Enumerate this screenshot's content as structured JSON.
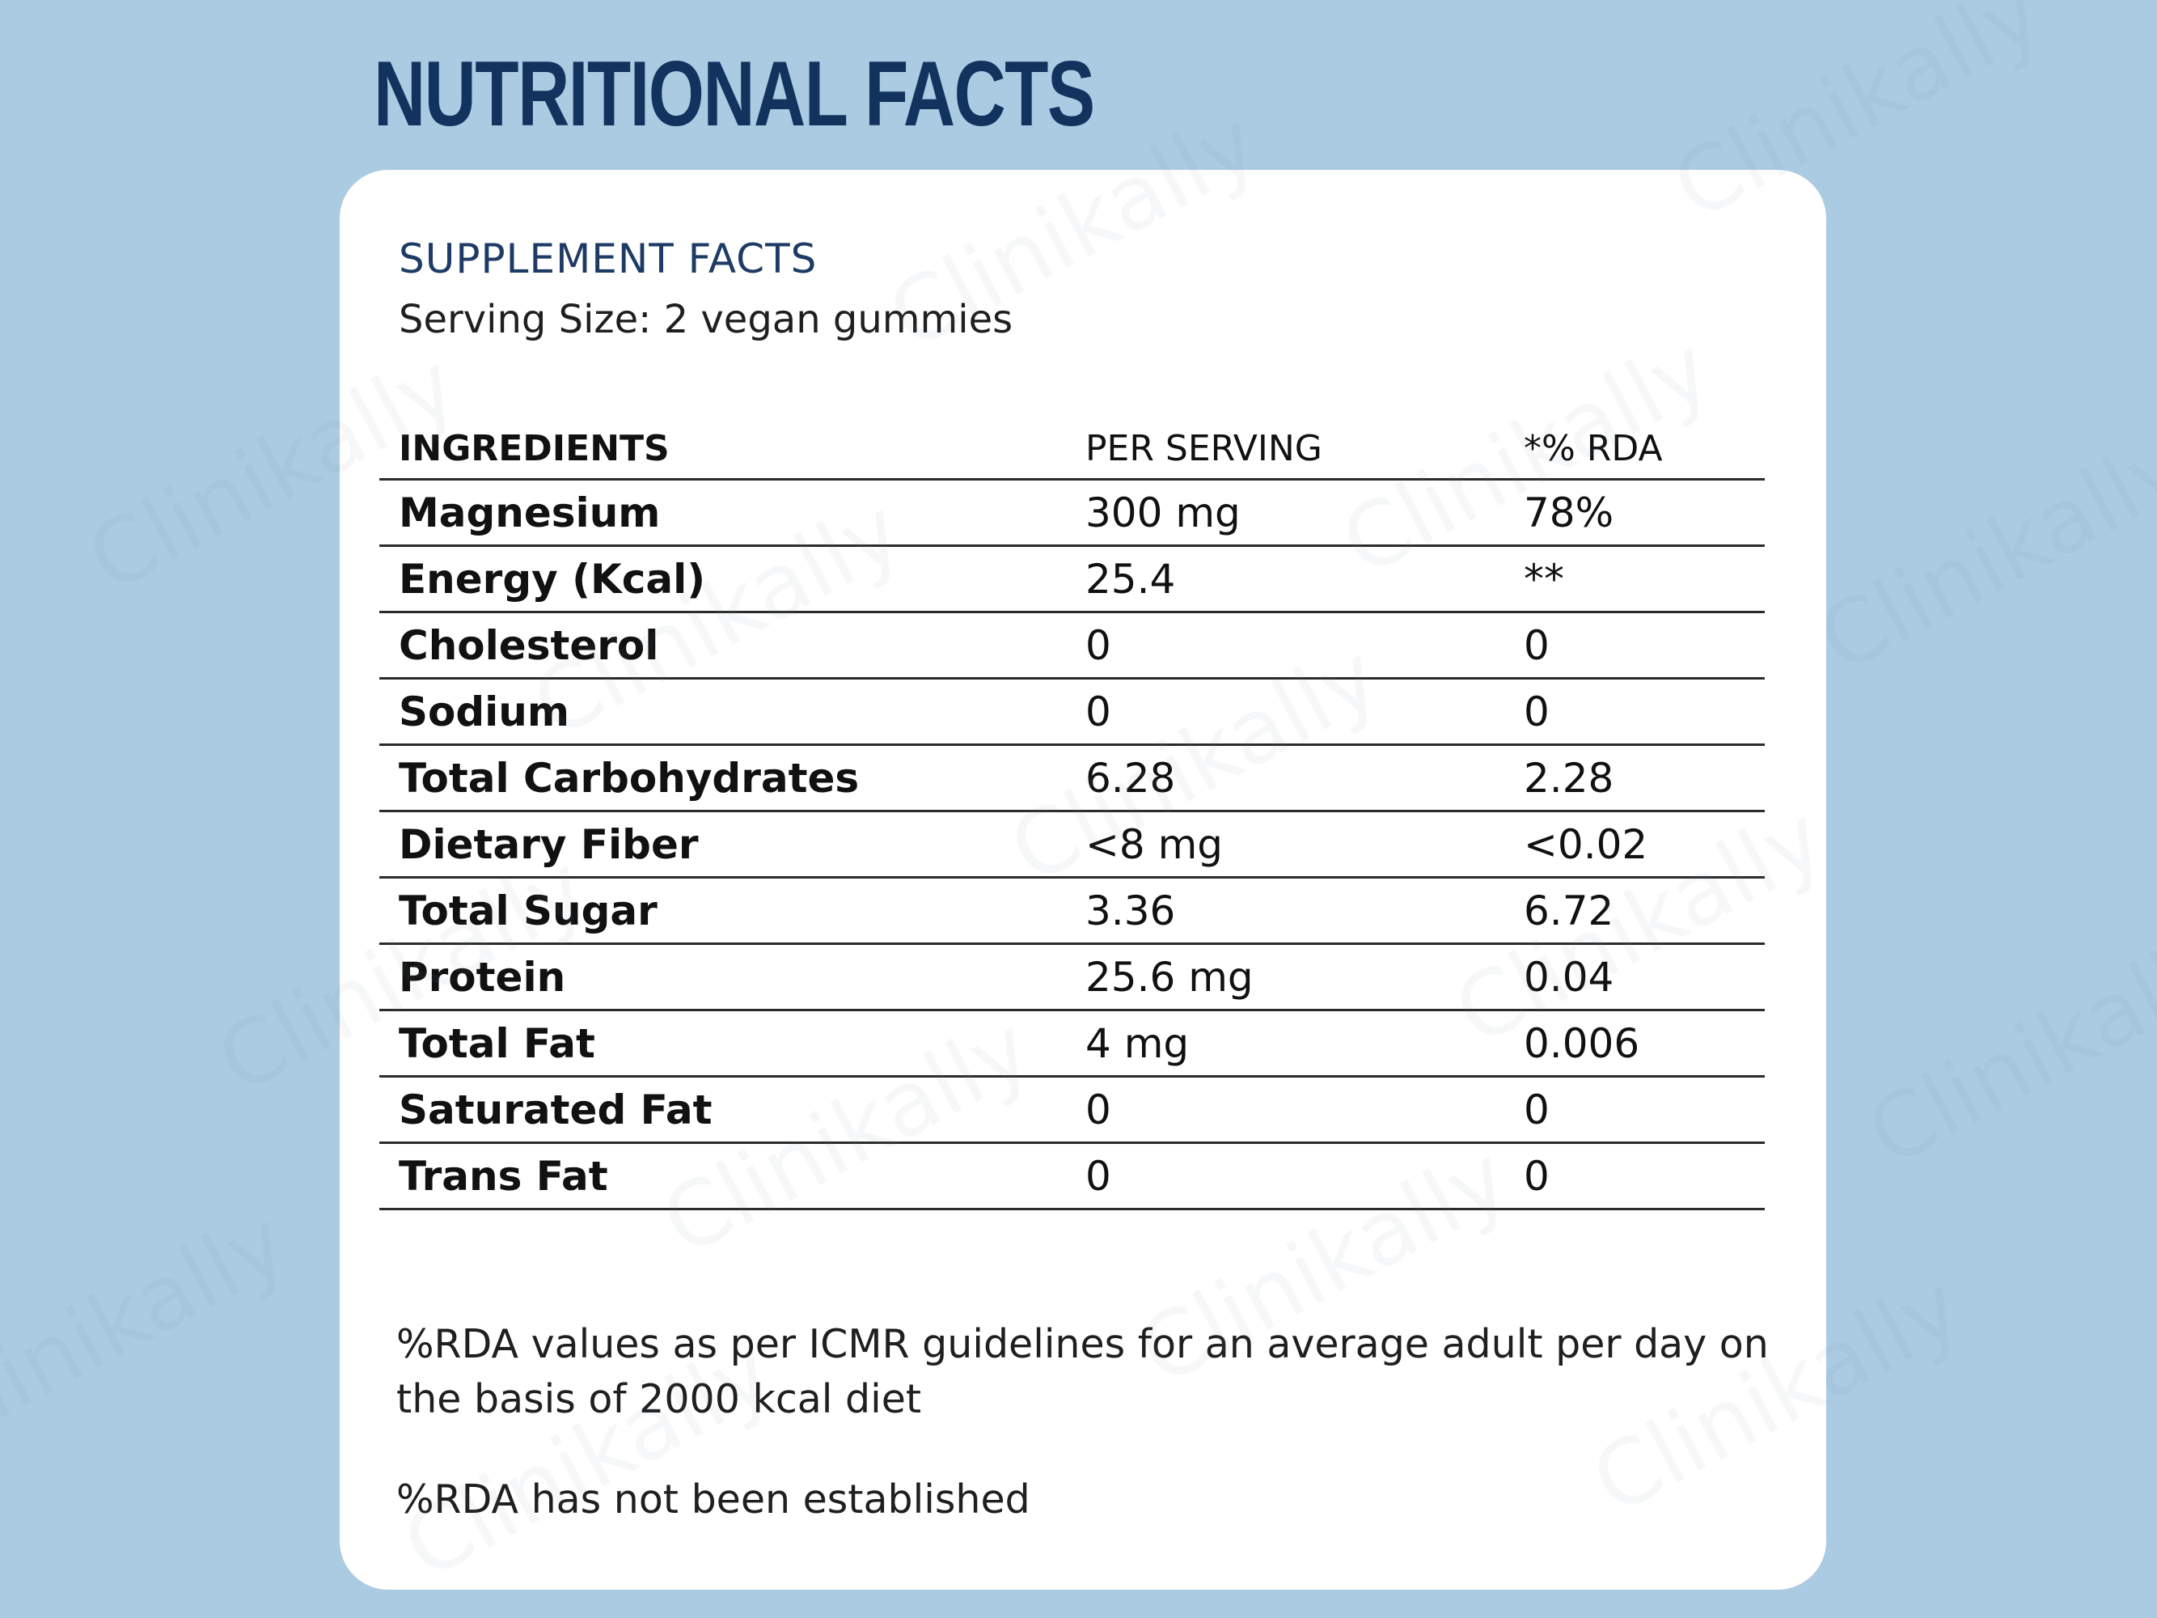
{
  "page": {
    "title": "NUTRITIONAL FACTS",
    "watermark": "Clinikally"
  },
  "card": {
    "heading": "SUPPLEMENT FACTS",
    "serving_size": "Serving Size: 2 vegan gummies"
  },
  "table": {
    "headers": [
      "INGREDIENTS",
      "PER SERVING",
      "*% RDA"
    ],
    "rows": [
      [
        "Magnesium",
        "300 mg",
        "78%"
      ],
      [
        "Energy (Kcal)",
        "25.4",
        "**"
      ],
      [
        "Cholesterol",
        "0",
        "0"
      ],
      [
        "Sodium",
        "0",
        "0"
      ],
      [
        "Total Carbohydrates",
        "6.28",
        "2.28"
      ],
      [
        "Dietary Fiber",
        "<8 mg",
        "<0.02"
      ],
      [
        "Total Sugar",
        "3.36",
        "6.72"
      ],
      [
        "Protein",
        "25.6 mg",
        "0.04"
      ],
      [
        "Total Fat",
        "4 mg",
        "0.006"
      ],
      [
        "Saturated Fat",
        "0",
        "0"
      ],
      [
        "Trans Fat",
        "0",
        "0"
      ]
    ]
  },
  "notes": {
    "rda_basis": "%RDA values as per ICMR guidelines for an average adult per day on the basis of 2000 kcal diet",
    "rda_not_established": "%RDA has not been established"
  },
  "colors": {
    "background": "#abcbe2",
    "title": "#13335f",
    "card": "#ffffff",
    "heading": "#1e3b66"
  }
}
